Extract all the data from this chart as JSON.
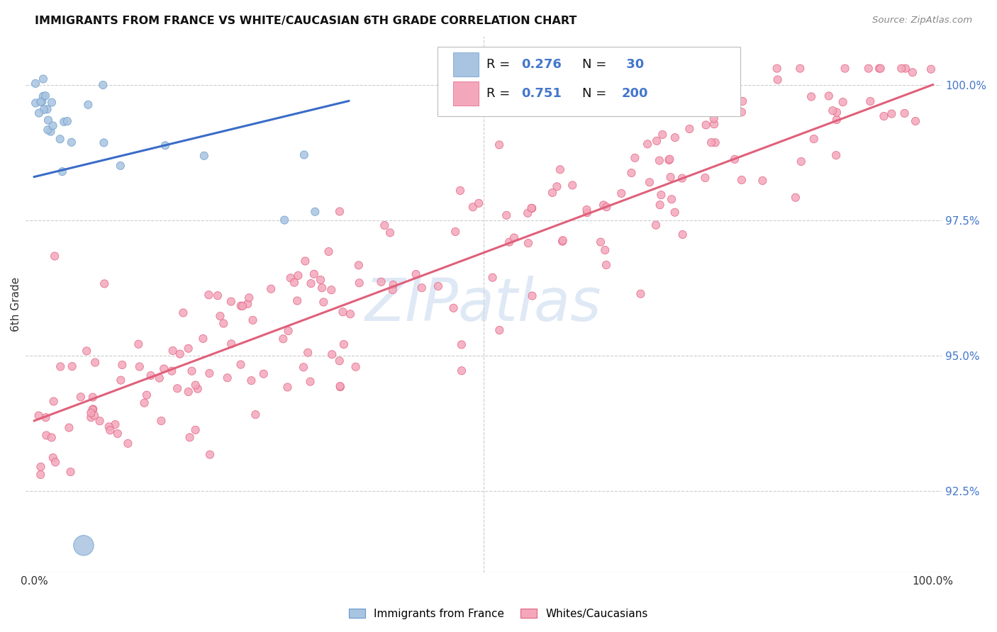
{
  "title": "IMMIGRANTS FROM FRANCE VS WHITE/CAUCASIAN 6TH GRADE CORRELATION CHART",
  "source": "Source: ZipAtlas.com",
  "ylabel": "6th Grade",
  "right_ytick_labels": [
    "92.5%",
    "95.0%",
    "97.5%",
    "100.0%"
  ],
  "right_ytick_vals": [
    92.5,
    95.0,
    97.5,
    100.0
  ],
  "legend_label_blue": "Immigrants from France",
  "legend_label_pink": "Whites/Caucasians",
  "blue_color": "#a8c4e0",
  "blue_edge_color": "#6699cc",
  "pink_color": "#f4a7bb",
  "pink_edge_color": "#e06080",
  "blue_line_color": "#3a6cc8",
  "pink_line_color": "#e0607a",
  "background_color": "#FFFFFF",
  "watermark_color": "#c5d8ee",
  "title_color": "#111111",
  "source_color": "#888888",
  "right_tick_color": "#4477cc",
  "ylim_low": 91.0,
  "ylim_high": 100.9,
  "xlim_low": -1,
  "xlim_high": 101,
  "blue_line_x0": 0.0,
  "blue_line_x1": 35.0,
  "blue_line_y0": 98.3,
  "blue_line_y1": 99.7,
  "pink_line_x0": 0.0,
  "pink_line_x1": 100.0,
  "pink_line_y0": 93.8,
  "pink_line_y1": 100.0
}
